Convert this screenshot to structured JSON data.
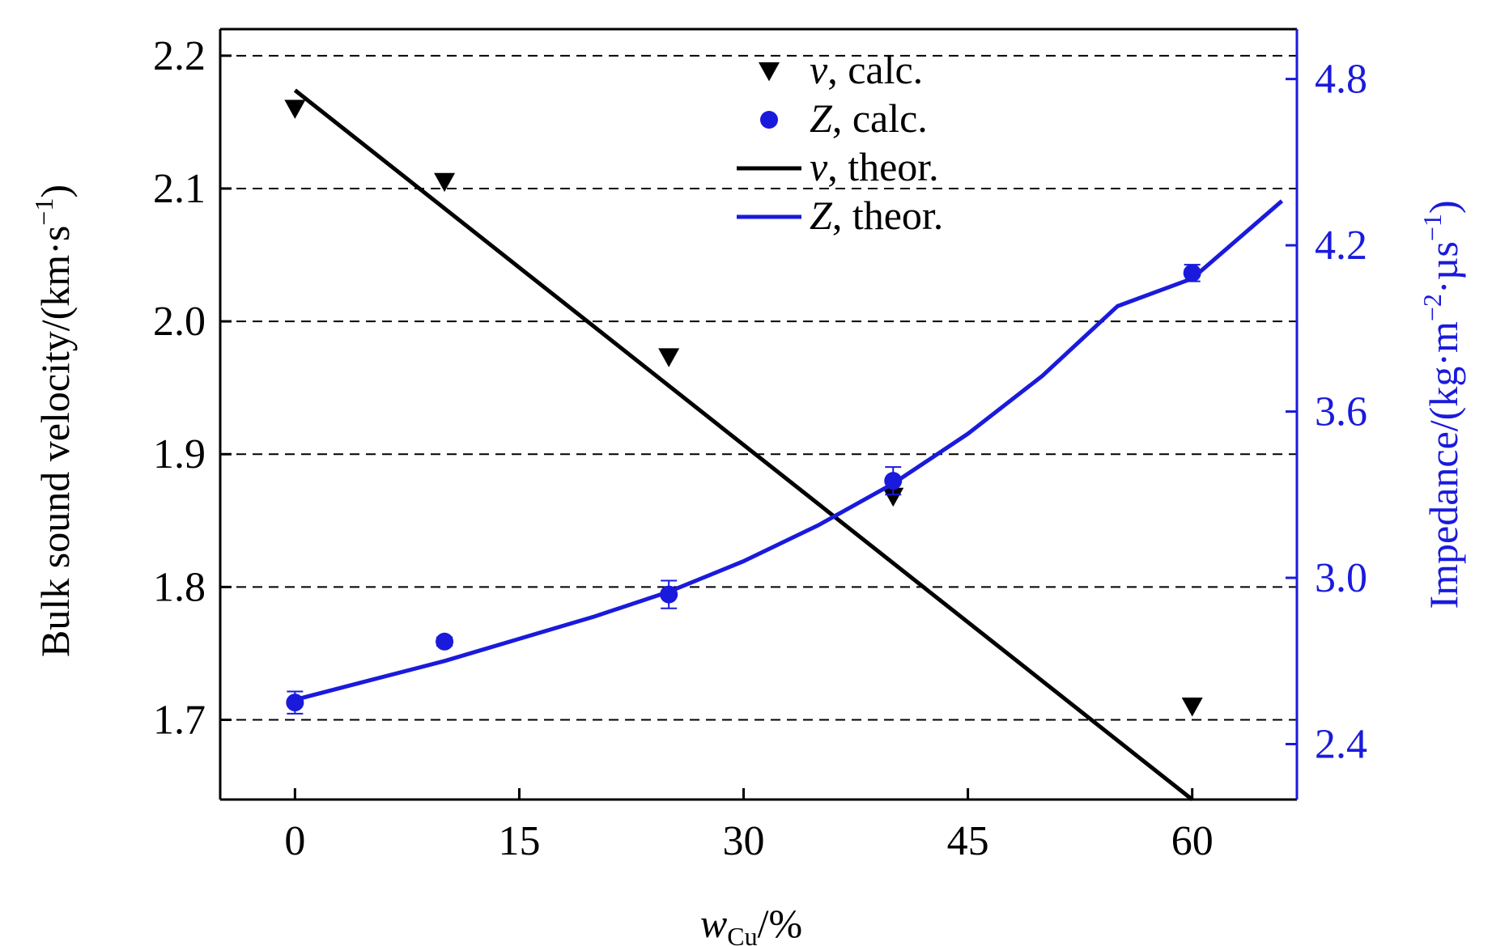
{
  "colors": {
    "left_axis": "#000000",
    "right_axis": "#1a1adc",
    "grid": "#000000"
  },
  "chart_data": {
    "type": "line",
    "title": "",
    "grid": "horizontal dashed",
    "legend_position": "top-center",
    "xlabel": {
      "main": "w",
      "sub": "Cu",
      "tail": "/%"
    },
    "ylabel_left": {
      "main": "Bulk sound velocity/(km·s",
      "sup": "−1",
      "tail": ")"
    },
    "ylabel_right": {
      "main": "Impedance/(kg·m",
      "sup1": "−2",
      "mid": "·µs",
      "sup2": "−1",
      "tail": ")"
    },
    "xlim": [
      -5,
      67
    ],
    "ylim_left": [
      1.64,
      2.22
    ],
    "ylim_right": [
      2.2,
      4.98
    ],
    "x_ticks": [
      0,
      15,
      30,
      45,
      60
    ],
    "x_tick_labels": [
      "0",
      "15",
      "30",
      "45",
      "60"
    ],
    "y_left_ticks": [
      1.7,
      1.8,
      1.9,
      2.0,
      2.1,
      2.2
    ],
    "y_left_tick_labels": [
      "1.7",
      "1.8",
      "1.9",
      "2.0",
      "2.1",
      "2.2"
    ],
    "y_right_ticks": [
      2.4,
      3.0,
      3.6,
      4.2,
      4.8
    ],
    "y_right_tick_labels": [
      "2.4",
      "3.0",
      "3.6",
      "4.2",
      "4.8"
    ],
    "legend": [
      {
        "symbol": "v",
        "text": ", calc.",
        "marker": "triangle-down",
        "color": "#000000"
      },
      {
        "symbol": "Z",
        "text": ", calc.",
        "marker": "circle",
        "color": "#1a1adc"
      },
      {
        "symbol": "v",
        "text": ", theor.",
        "marker": "line",
        "color": "#000000"
      },
      {
        "symbol": "Z",
        "text": ", theor.",
        "marker": "line",
        "color": "#1a1adc"
      }
    ],
    "series": [
      {
        "key": "v_calc",
        "axis": "left",
        "style": "triangle-down",
        "color": "#000000",
        "x": [
          0,
          10,
          25,
          40,
          60
        ],
        "y": [
          2.16,
          2.105,
          1.973,
          1.868,
          1.71
        ]
      },
      {
        "key": "z_calc",
        "axis": "right",
        "style": "circle",
        "color": "#1a1adc",
        "x": [
          0,
          10,
          25,
          40,
          60
        ],
        "y": [
          2.55,
          2.77,
          2.94,
          3.35,
          4.1
        ],
        "err": [
          0.04,
          0.015,
          0.05,
          0.05,
          0.03
        ]
      },
      {
        "key": "v_theor",
        "axis": "left",
        "style": "line",
        "color": "#000000",
        "x": [
          0,
          60
        ],
        "y": [
          2.174,
          1.64
        ]
      },
      {
        "key": "z_theor",
        "axis": "right",
        "style": "line",
        "color": "#1a1adc",
        "x": [
          0,
          5,
          10,
          15,
          20,
          25,
          30,
          35,
          40,
          45,
          50,
          55,
          60,
          66
        ],
        "y": [
          2.56,
          2.63,
          2.7,
          2.78,
          2.86,
          2.95,
          3.06,
          3.19,
          3.34,
          3.52,
          3.73,
          3.98,
          4.08,
          4.36
        ]
      }
    ]
  }
}
